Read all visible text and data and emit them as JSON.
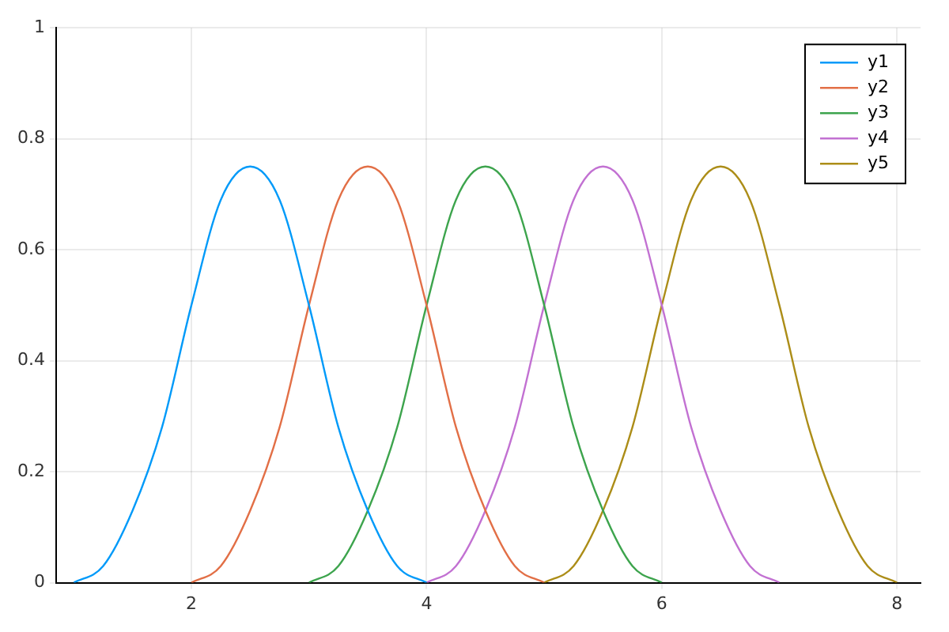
{
  "chart_data": {
    "type": "line",
    "xlim": [
      0.85,
      8.2
    ],
    "ylim": [
      0,
      1
    ],
    "xticks": [
      2,
      4,
      6,
      8
    ],
    "yticks": [
      0,
      0.2,
      0.4,
      0.6,
      0.8,
      1
    ],
    "grid": true,
    "legend": "top right",
    "marker": "none",
    "line_style": "solid",
    "series": [
      {
        "name": "y1",
        "color": "#009af9",
        "x": [
          1,
          1.25,
          1.5,
          1.75,
          2,
          2.25,
          2.5,
          2.75,
          3,
          3.25,
          3.5,
          3.75,
          4
        ],
        "values": [
          0,
          0.03,
          0.13,
          0.28,
          0.5,
          0.69,
          0.75,
          0.69,
          0.5,
          0.28,
          0.13,
          0.03,
          0
        ]
      },
      {
        "name": "y2",
        "color": "#e26f46",
        "x": [
          2,
          2.25,
          2.5,
          2.75,
          3,
          3.25,
          3.5,
          3.75,
          4,
          4.25,
          4.5,
          4.75,
          5
        ],
        "values": [
          0,
          0.03,
          0.13,
          0.28,
          0.5,
          0.69,
          0.75,
          0.69,
          0.5,
          0.28,
          0.13,
          0.03,
          0
        ]
      },
      {
        "name": "y3",
        "color": "#3da44d",
        "x": [
          3,
          3.25,
          3.5,
          3.75,
          4,
          4.25,
          4.5,
          4.75,
          5,
          5.25,
          5.5,
          5.75,
          6
        ],
        "values": [
          0,
          0.03,
          0.13,
          0.28,
          0.5,
          0.69,
          0.75,
          0.69,
          0.5,
          0.28,
          0.13,
          0.03,
          0
        ]
      },
      {
        "name": "y4",
        "color": "#c271d2",
        "x": [
          4,
          4.25,
          4.5,
          4.75,
          5,
          5.25,
          5.5,
          5.75,
          6,
          6.25,
          6.5,
          6.75,
          7
        ],
        "values": [
          0,
          0.03,
          0.13,
          0.28,
          0.5,
          0.69,
          0.75,
          0.69,
          0.5,
          0.28,
          0.13,
          0.03,
          0
        ]
      },
      {
        "name": "y5",
        "color": "#ac8d18",
        "x": [
          5,
          5.25,
          5.5,
          5.75,
          6,
          6.25,
          6.5,
          6.75,
          7,
          7.25,
          7.5,
          7.75,
          8
        ],
        "values": [
          0,
          0.03,
          0.13,
          0.28,
          0.5,
          0.69,
          0.75,
          0.69,
          0.5,
          0.28,
          0.13,
          0.03,
          0
        ]
      }
    ]
  }
}
